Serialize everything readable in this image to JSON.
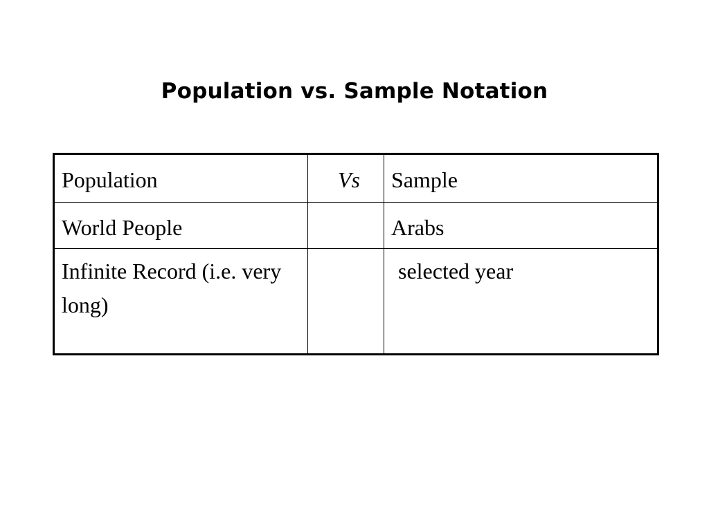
{
  "slide": {
    "title": "Population vs. Sample Notation"
  },
  "table": {
    "rows": [
      {
        "population": "Population",
        "vs": "Vs",
        "sample": "Sample"
      },
      {
        "population": "World People",
        "vs": "",
        "sample": "Arabs"
      },
      {
        "population": "Infinite Record (i.e. very long)",
        "vs": "",
        "sample": "selected year"
      }
    ]
  }
}
